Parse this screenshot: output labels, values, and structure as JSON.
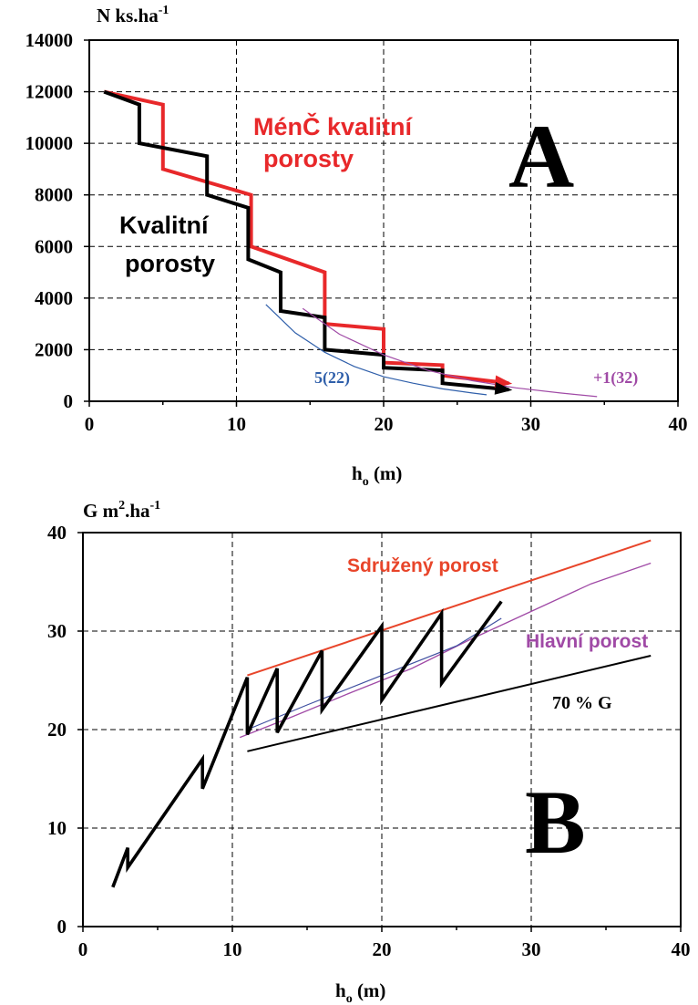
{
  "chart_data": [
    {
      "type": "line",
      "panel_letter": "A",
      "ylabel": "N ks.ha",
      "ylabel_sup": "-1",
      "xlabel": "h",
      "xlabel_sub": "o",
      "xlabel_unit": " (m)",
      "xlim": [
        0,
        40
      ],
      "ylim": [
        0,
        14000
      ],
      "xticks": [
        0,
        10,
        20,
        30,
        40
      ],
      "yticks": [
        0,
        2000,
        4000,
        6000,
        8000,
        10000,
        12000,
        14000
      ],
      "grid": true,
      "colors": {
        "red": "#e8282a",
        "black": "#000000",
        "blue": "#2f5faa",
        "purple": "#a04aa6"
      },
      "series": [
        {
          "name": "Méně kvalitní porosty",
          "color": "#e8282a",
          "x": [
            1,
            5,
            5,
            11,
            11,
            16,
            16,
            20,
            20,
            24,
            24,
            28.5
          ],
          "y": [
            12000,
            11500,
            9000,
            8000,
            6000,
            5000,
            3000,
            2800,
            1500,
            1400,
            1000,
            700
          ]
        },
        {
          "name": "Kvalitní porosty",
          "color": "#000000",
          "x": [
            1,
            3.4,
            3.4,
            8,
            8,
            10.8,
            10.8,
            13,
            13,
            16,
            16,
            20,
            20,
            24,
            24,
            28.5
          ],
          "y": [
            12000,
            11500,
            10000,
            9500,
            8000,
            7500,
            5500,
            5000,
            3500,
            3250,
            2000,
            1800,
            1300,
            1200,
            700,
            450
          ]
        },
        {
          "name": "5(22)",
          "color": "#2f5faa",
          "x": [
            12,
            14,
            16,
            18,
            20,
            22,
            24,
            26,
            27
          ],
          "y": [
            3750,
            2650,
            1900,
            1350,
            950,
            700,
            480,
            320,
            250
          ]
        },
        {
          "name": "+1(32)",
          "color": "#a04aa6",
          "x": [
            14.5,
            17,
            20,
            23,
            26,
            29,
            32,
            34.5
          ],
          "y": [
            3600,
            2600,
            1800,
            1200,
            800,
            520,
            320,
            180
          ]
        }
      ],
      "annotations": {
        "less_quality_line1": "MénČ kvalitní",
        "less_quality_line2": "porosty",
        "quality_line1": "Kvalitní",
        "quality_line2": "porosty",
        "blue_label": "5(22)",
        "purple_label": "+1(32)"
      }
    },
    {
      "type": "line",
      "panel_letter": "B",
      "ylabel": "G m",
      "ylabel_sup": "2",
      "ylabel_rest": ".ha",
      "ylabel_sup2": "-1",
      "xlabel": "h",
      "xlabel_sub": "o",
      "xlabel_unit": " (m)",
      "xlim": [
        0,
        40
      ],
      "ylim": [
        0,
        40
      ],
      "xticks": [
        0,
        10,
        20,
        30,
        40
      ],
      "yticks": [
        0,
        10,
        20,
        30,
        40
      ],
      "grid": true,
      "colors": {
        "orange": "#e8452a",
        "black": "#000000",
        "purple": "#a04aa6",
        "blue": "#3e4fa0"
      },
      "series": [
        {
          "name": "Sdružený porost",
          "color": "#e8452a",
          "x": [
            11,
            38
          ],
          "y": [
            25.5,
            39.2
          ]
        },
        {
          "name": "Hlavní porost",
          "color": "#a04aa6",
          "x": [
            10.5,
            14,
            18,
            22,
            26,
            30,
            34,
            38
          ],
          "y": [
            19.2,
            21.3,
            23.8,
            26.2,
            29.2,
            32,
            34.8,
            36.9
          ]
        },
        {
          "name": "",
          "color": "#3e4fa0",
          "x": [
            11,
            15,
            20,
            25,
            28
          ],
          "y": [
            20,
            22.5,
            25.5,
            28.5,
            31.3
          ]
        },
        {
          "name": "70 % G",
          "color": "#000000",
          "x": [
            11,
            38
          ],
          "y": [
            17.8,
            27.5
          ]
        },
        {
          "name": "",
          "color": "#000000",
          "x": [
            2,
            3,
            3,
            8,
            8,
            11,
            11,
            13,
            13,
            16,
            16,
            20,
            20,
            24,
            24,
            28
          ],
          "y": [
            4,
            8,
            6,
            17,
            14,
            25.3,
            19.5,
            26.2,
            19.7,
            28,
            22,
            30.5,
            23,
            31.8,
            24.7,
            33
          ]
        }
      ],
      "annotations": {
        "combined": "Sdružený porost",
        "main": "Hlavní porost",
        "seventy": "70 % G"
      }
    }
  ]
}
